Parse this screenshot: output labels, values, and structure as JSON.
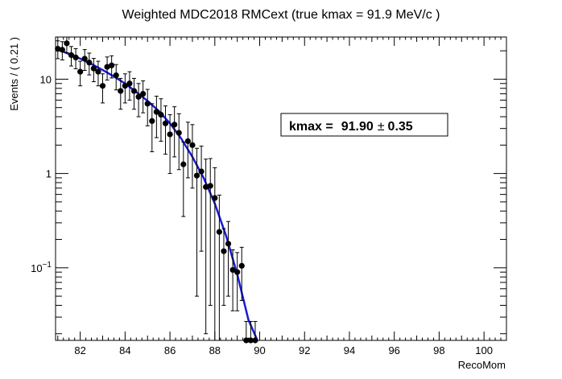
{
  "chart_data": {
    "type": "scatter",
    "title": "Weighted MDC2018 RMCext (true kmax = 91.9 MeV/c )",
    "xlabel": "RecoMom",
    "ylabel": "Events / ( 0.21 )",
    "xlim": [
      80.9,
      101.0
    ],
    "ylim": [
      0.017,
      28
    ],
    "yscale": "log",
    "grid": false,
    "legend": "none",
    "xticks": [
      82,
      84,
      86,
      88,
      90,
      92,
      94,
      96,
      98,
      100
    ],
    "xtick_labels": [
      "82",
      "84",
      "86",
      "88",
      "90",
      "92",
      "94",
      "96",
      "98",
      "100"
    ],
    "yticks": [
      0.1,
      1,
      10
    ],
    "ytick_labels": [
      {
        "base": "10",
        "exp": "−1"
      },
      {
        "base": "1",
        "exp": ""
      },
      {
        "base": "10",
        "exp": ""
      }
    ],
    "annotation": {
      "label": "kmax =",
      "value": "91.90",
      "pm": "±",
      "error": "0.35"
    },
    "colors": {
      "points": "#000000",
      "fit": "#1a1ad6",
      "frame": "#000000",
      "background": "#ffffff"
    },
    "series": [
      {
        "kind": "points_with_errors",
        "x": [
          81.0,
          81.2,
          81.4,
          81.6,
          81.8,
          82.0,
          82.2,
          82.4,
          82.6,
          82.8,
          83.0,
          83.2,
          83.4,
          83.6,
          83.8,
          84.0,
          84.2,
          84.4,
          84.6,
          84.8,
          85.0,
          85.2,
          85.4,
          85.6,
          85.8,
          86.0,
          86.2,
          86.4,
          86.6,
          86.8,
          87.0,
          87.2,
          87.4,
          87.6,
          87.8,
          88.0,
          88.2,
          88.4,
          88.6,
          88.8,
          89.0,
          89.2,
          89.4,
          89.6,
          89.8
        ],
        "y": [
          21,
          20.5,
          24,
          18,
          17,
          12,
          16.5,
          15,
          13,
          12,
          8.5,
          13.5,
          14,
          11,
          7.5,
          8.5,
          9,
          7.5,
          6.5,
          7,
          5.5,
          3.6,
          4.5,
          4.2,
          3.4,
          2.6,
          3.3,
          2.7,
          1.25,
          2.2,
          2.0,
          0.95,
          1.05,
          0.72,
          0.74,
          0.55,
          0.24,
          0.15,
          0.18,
          0.095,
          0.09,
          0.105,
          0.017,
          0.017,
          0.017
        ],
        "yerr_low": [
          4.5,
          4.5,
          4.9,
          4.2,
          4.1,
          3.5,
          4.1,
          3.9,
          3.6,
          3.5,
          2.9,
          3.7,
          3.7,
          3.3,
          2.7,
          2.9,
          3.0,
          2.7,
          2.5,
          2.6,
          2.3,
          1.9,
          2.1,
          2.0,
          1.8,
          1.6,
          1.8,
          1.6,
          0.9,
          1.3,
          1.3,
          0.9,
          0.9,
          0.7,
          0.7,
          0.6,
          0.35,
          0.11,
          0.13,
          0.06,
          0.055,
          0.06,
          0.01,
          0.01,
          0.01
        ],
        "yerr_high": [
          4.5,
          4.5,
          4.9,
          4.2,
          4.1,
          3.5,
          4.1,
          3.9,
          3.6,
          3.5,
          2.9,
          3.7,
          3.7,
          3.3,
          2.7,
          2.9,
          3.0,
          2.7,
          2.5,
          2.6,
          2.3,
          1.9,
          2.1,
          2.0,
          1.8,
          1.6,
          1.8,
          1.6,
          0.9,
          1.3,
          1.3,
          0.9,
          0.9,
          0.7,
          0.7,
          0.6,
          0.35,
          0.11,
          0.13,
          0.06,
          0.055,
          0.06,
          0.01,
          0.01,
          0.01
        ]
      },
      {
        "kind": "fit_curve",
        "x": [
          80.9,
          81.5,
          82.0,
          82.5,
          83.0,
          83.5,
          84.0,
          84.5,
          85.0,
          85.5,
          86.0,
          86.5,
          87.0,
          87.5,
          88.0,
          88.5,
          89.0,
          89.5,
          89.9
        ],
        "y": [
          21,
          18.5,
          16.5,
          14.5,
          12.5,
          10.7,
          9.0,
          7.3,
          5.9,
          4.6,
          3.4,
          2.35,
          1.5,
          0.9,
          0.48,
          0.22,
          0.085,
          0.028,
          0.017
        ]
      }
    ]
  }
}
